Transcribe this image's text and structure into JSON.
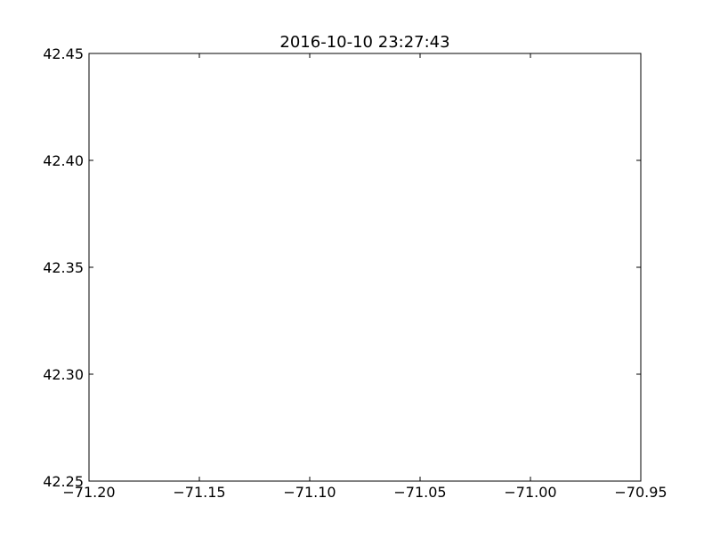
{
  "chart_data": {
    "type": "scatter",
    "title": "2016-10-10 23:27:43",
    "xlabel": "",
    "ylabel": "",
    "xlim": [
      -71.2,
      -70.95
    ],
    "ylim": [
      42.25,
      42.45
    ],
    "x_ticks": [
      -71.2,
      -71.15,
      -71.1,
      -71.05,
      -71.0,
      -70.95
    ],
    "x_tick_labels": [
      "−71.20",
      "−71.15",
      "−71.10",
      "−71.05",
      "−71.00",
      "−70.95"
    ],
    "y_ticks": [
      42.25,
      42.3,
      42.35,
      42.4,
      42.45
    ],
    "y_tick_labels": [
      "42.25",
      "42.30",
      "42.35",
      "42.40",
      "42.45"
    ],
    "series": [],
    "grid": false,
    "legend": "none"
  }
}
